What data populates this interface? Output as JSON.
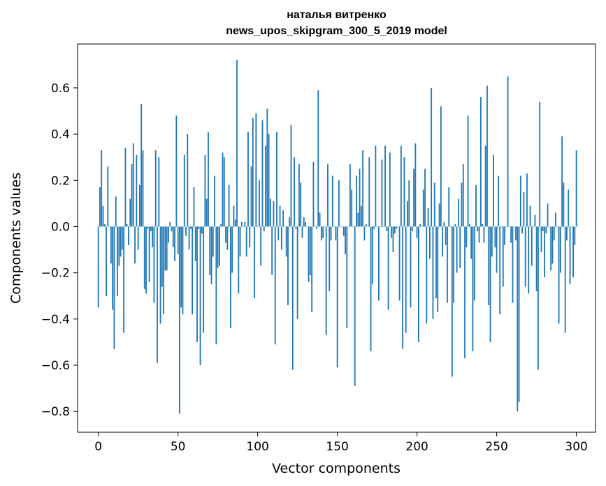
{
  "chart_data": {
    "type": "bar",
    "title_lines": [
      "наталья витренко",
      "news_upos_skipgram_300_5_2019 model"
    ],
    "xlabel": "Vector components",
    "ylabel": "Components values",
    "xlim": [
      -13,
      312
    ],
    "ylim": [
      -0.89,
      0.79
    ],
    "x_ticks": [
      0,
      50,
      100,
      150,
      200,
      250,
      300
    ],
    "x_tick_labels": [
      "0",
      "50",
      "100",
      "150",
      "200",
      "250",
      "300"
    ],
    "y_ticks": [
      -0.8,
      -0.6,
      -0.4,
      -0.2,
      0.0,
      0.2,
      0.4,
      0.6
    ],
    "y_tick_labels": [
      "−0.8",
      "−0.6",
      "−0.4",
      "−0.2",
      "0.0",
      "0.2",
      "0.4",
      "0.6"
    ],
    "bar_color": "#1f77b4",
    "grid": false,
    "values": [
      -0.35,
      0.17,
      0.33,
      0.09,
      0.01,
      -0.3,
      0.26,
      0.0,
      -0.16,
      -0.36,
      -0.53,
      0.13,
      -0.3,
      -0.17,
      -0.13,
      -0.1,
      -0.46,
      0.34,
      0.01,
      -0.08,
      0.12,
      0.27,
      0.36,
      -0.16,
      0.31,
      -0.1,
      0.18,
      0.53,
      0.33,
      -0.27,
      -0.29,
      -0.01,
      -0.24,
      -0.02,
      -0.09,
      -0.33,
      0.33,
      -0.59,
      0.3,
      -0.42,
      -0.26,
      -0.38,
      -0.19,
      -0.19,
      -0.07,
      0.02,
      -0.02,
      -0.09,
      -0.15,
      0.48,
      -0.12,
      -0.81,
      -0.35,
      -0.38,
      0.31,
      -0.04,
      0.4,
      -0.1,
      -0.01,
      -0.38,
      0.17,
      -0.15,
      -0.5,
      -0.01,
      -0.6,
      -0.03,
      -0.46,
      0.31,
      0.12,
      0.41,
      -0.21,
      -0.25,
      -0.13,
      0.22,
      -0.51,
      -0.18,
      -0.17,
      0.01,
      0.32,
      0.3,
      -0.07,
      -0.1,
      0.18,
      -0.44,
      -0.2,
      0.09,
      0.03,
      0.72,
      -0.29,
      -0.13,
      0.02,
      0.0,
      0.02,
      -0.13,
      0.41,
      -0.09,
      0.26,
      0.47,
      -0.31,
      0.49,
      0.0,
      0.2,
      -0.17,
      0.46,
      -0.02,
      0.35,
      0.51,
      0.4,
      0.12,
      -0.21,
      0.11,
      -0.51,
      0.41,
      -0.06,
      0.09,
      -0.1,
      0.07,
      0.0,
      -0.13,
      -0.34,
      0.04,
      0.44,
      -0.62,
      0.3,
      -0.01,
      -0.4,
      0.27,
      0.19,
      -0.05,
      0.04,
      0.02,
      0.0,
      -0.24,
      -0.21,
      -0.37,
      0.28,
      0.0,
      -0.01,
      0.59,
      0.06,
      -0.06,
      -0.05,
      0.0,
      -0.47,
      0.27,
      -0.28,
      -0.06,
      0.22,
      0.0,
      -0.06,
      -0.61,
      0.2,
      0.0,
      0.0,
      -0.04,
      -0.12,
      -0.44,
      0.0,
      0.27,
      0.16,
      0.0,
      -0.69,
      0.22,
      0.06,
      0.25,
      0.09,
      0.33,
      -0.06,
      0.01,
      0.0,
      0.3,
      -0.54,
      -0.25,
      -0.01,
      0.35,
      0.0,
      -0.32,
      0.0,
      0.29,
      0.0,
      0.35,
      -0.02,
      -0.36,
      0.32,
      -0.05,
      -0.11,
      -0.03,
      -0.01,
      0.0,
      -0.32,
      0.35,
      -0.53,
      0.3,
      -0.46,
      0.11,
      0.2,
      -0.35,
      -0.02,
      0.25,
      0.36,
      -0.05,
      -0.5,
      0.01,
      0.0,
      0.16,
      0.25,
      -0.42,
      0.08,
      -0.14,
      0.6,
      -0.4,
      0.19,
      -0.31,
      -0.37,
      0.1,
      0.52,
      -0.13,
      0.02,
      -0.08,
      -0.33,
      0.17,
      0.0,
      -0.65,
      -0.33,
      0.01,
      -0.2,
      0.12,
      -0.18,
      0.19,
      0.27,
      -0.57,
      -0.09,
      0.48,
      0.01,
      -0.14,
      -0.54,
      -0.32,
      0.18,
      -0.02,
      -0.07,
      0.56,
      0.01,
      -0.07,
      0.35,
      0.61,
      -0.34,
      -0.5,
      -0.13,
      0.31,
      -0.09,
      -0.2,
      0.22,
      -0.38,
      0.0,
      -0.26,
      -0.08,
      0.0,
      0.65,
      0.0,
      -0.07,
      -0.33,
      0.0,
      -0.06,
      -0.8,
      -0.76,
      0.22,
      -0.03,
      0.15,
      -0.26,
      0.23,
      -0.29,
      0.09,
      -0.17,
      0.0,
      0.05,
      -0.28,
      -0.62,
      0.54,
      -0.11,
      -0.02,
      -0.22,
      -0.03,
      0.1,
      0.0,
      -0.19,
      -0.16,
      -0.06,
      0.06,
      0.0,
      -0.42,
      -0.2,
      0.39,
      0.19,
      -0.46,
      -0.06,
      0.16,
      -0.25,
      0.0,
      -0.22,
      -0.08,
      0.33
    ]
  }
}
